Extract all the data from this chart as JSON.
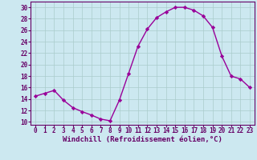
{
  "x": [
    0,
    1,
    2,
    3,
    4,
    5,
    6,
    7,
    8,
    9,
    10,
    11,
    12,
    13,
    14,
    15,
    16,
    17,
    18,
    19,
    20,
    21,
    22,
    23
  ],
  "y": [
    14.5,
    15.0,
    15.5,
    13.8,
    12.5,
    11.8,
    11.2,
    10.5,
    10.2,
    13.8,
    18.5,
    23.2,
    26.2,
    28.2,
    29.2,
    30.0,
    30.0,
    29.5,
    28.5,
    26.5,
    21.5,
    18.0,
    17.5,
    16.0
  ],
  "line_color": "#990099",
  "marker": "D",
  "markersize": 2.2,
  "linewidth": 1.0,
  "xlabel": "Windchill (Refroidissement éolien,°C)",
  "xlabel_fontsize": 6.5,
  "background_color": "#cce8f0",
  "grid_color": "#aacccc",
  "xlim": [
    -0.5,
    23.5
  ],
  "ylim": [
    9.5,
    31
  ],
  "yticks": [
    10,
    12,
    14,
    16,
    18,
    20,
    22,
    24,
    26,
    28,
    30
  ],
  "xticks": [
    0,
    1,
    2,
    3,
    4,
    5,
    6,
    7,
    8,
    9,
    10,
    11,
    12,
    13,
    14,
    15,
    16,
    17,
    18,
    19,
    20,
    21,
    22,
    23
  ],
  "tick_fontsize": 5.5,
  "tick_color": "#660066",
  "spine_color": "#660066"
}
